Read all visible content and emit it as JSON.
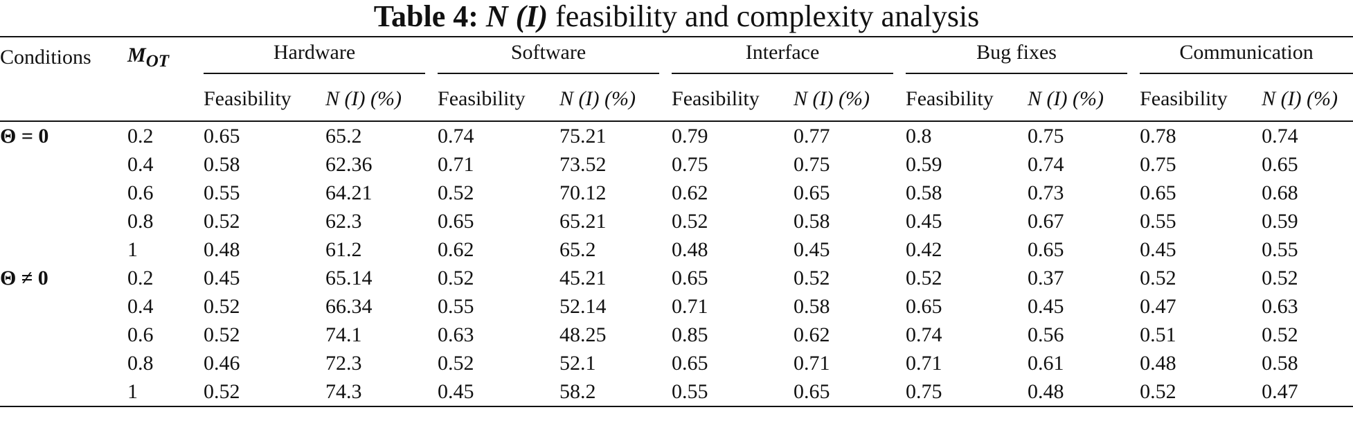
{
  "caption": {
    "label": "Table 4:",
    "symbol": "N (I)",
    "text": "feasibility and complexity analysis"
  },
  "columns": {
    "conditions": "Conditions",
    "mot_main": "M",
    "mot_sub": "OT",
    "groups": [
      "Hardware",
      "Software",
      "Interface",
      "Bug fixes",
      "Communication"
    ],
    "sub_feasibility": "Feasibility",
    "sub_ni": "N (I) (%)"
  },
  "rows": [
    {
      "cond": "Θ = 0",
      "mot": "0.2",
      "vals": [
        "0.65",
        "65.2",
        "0.74",
        "75.21",
        "0.79",
        "0.77",
        "0.8",
        "0.75",
        "0.78",
        "0.74"
      ]
    },
    {
      "cond": "",
      "mot": "0.4",
      "vals": [
        "0.58",
        "62.36",
        "0.71",
        "73.52",
        "0.75",
        "0.75",
        "0.59",
        "0.74",
        "0.75",
        "0.65"
      ]
    },
    {
      "cond": "",
      "mot": "0.6",
      "vals": [
        "0.55",
        "64.21",
        "0.52",
        "70.12",
        "0.62",
        "0.65",
        "0.58",
        "0.73",
        "0.65",
        "0.68"
      ]
    },
    {
      "cond": "",
      "mot": "0.8",
      "vals": [
        "0.52",
        "62.3",
        "0.65",
        "65.21",
        "0.52",
        "0.58",
        "0.45",
        "0.67",
        "0.55",
        "0.59"
      ]
    },
    {
      "cond": "",
      "mot": "1",
      "vals": [
        "0.48",
        "61.2",
        "0.62",
        "65.2",
        "0.48",
        "0.45",
        "0.42",
        "0.65",
        "0.45",
        "0.55"
      ]
    },
    {
      "cond": "Θ ≠ 0",
      "mot": "0.2",
      "vals": [
        "0.45",
        "65.14",
        "0.52",
        "45.21",
        "0.65",
        "0.52",
        "0.52",
        "0.37",
        "0.52",
        "0.52"
      ]
    },
    {
      "cond": "",
      "mot": "0.4",
      "vals": [
        "0.52",
        "66.34",
        "0.55",
        "52.14",
        "0.71",
        "0.58",
        "0.65",
        "0.45",
        "0.47",
        "0.63"
      ]
    },
    {
      "cond": "",
      "mot": "0.6",
      "vals": [
        "0.52",
        "74.1",
        "0.63",
        "48.25",
        "0.85",
        "0.62",
        "0.74",
        "0.56",
        "0.51",
        "0.52"
      ]
    },
    {
      "cond": "",
      "mot": "0.8",
      "vals": [
        "0.46",
        "72.3",
        "0.52",
        "52.1",
        "0.65",
        "0.71",
        "0.71",
        "0.61",
        "0.48",
        "0.58"
      ]
    },
    {
      "cond": "",
      "mot": "1",
      "vals": [
        "0.52",
        "74.3",
        "0.45",
        "58.2",
        "0.55",
        "0.65",
        "0.75",
        "0.48",
        "0.52",
        "0.47"
      ]
    }
  ]
}
